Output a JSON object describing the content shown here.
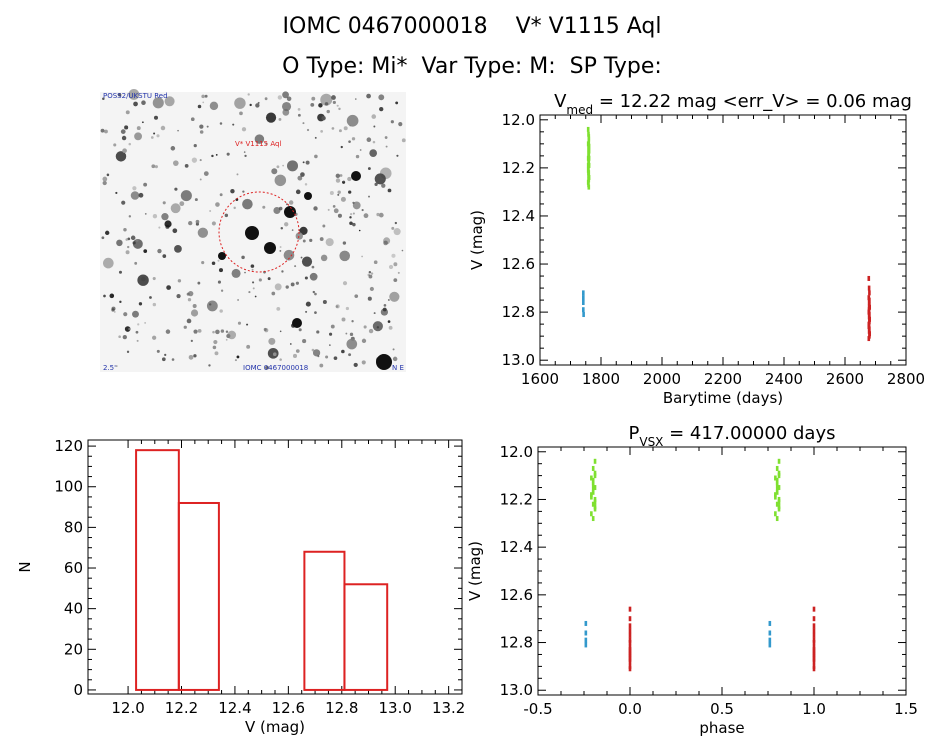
{
  "header": {
    "line1": "IOMC 0467000018    V* V1115 Aql",
    "line2": "O Type: Mi*  Var Type: M:  SP Type:"
  },
  "sky_image": {
    "overlay_top_left": "POSS2/UKSTU Red",
    "overlay_label": "V* V1115 Aql",
    "overlay_bottom_left": "2.5'",
    "overlay_bottom_center": "IOMC 0467000018",
    "overlay_bottom_right": "N E",
    "circle_color": "#dd2222"
  },
  "chart_data": [
    {
      "id": "lightcurve",
      "type": "scatter",
      "title_main": "V",
      "title_sub": "med",
      "title_rest": " = 12.22 mag <err_V> = 0.06 mag",
      "xlabel": "Barytime (days)",
      "ylabel": "V (mag)",
      "xlim": [
        1600,
        2800
      ],
      "ylim": [
        13.02,
        11.98
      ],
      "xticks": [
        1600,
        1800,
        2000,
        2200,
        2400,
        2600,
        2800
      ],
      "yticks": [
        12.0,
        12.2,
        12.4,
        12.6,
        12.8,
        13.0
      ],
      "tick_decimals": 0,
      "ytick_decimals": 1,
      "series": [
        {
          "color": "#7fe030",
          "x": [
            1758,
            1759,
            1760,
            1758,
            1759,
            1761,
            1760,
            1758,
            1759,
            1760,
            1761,
            1759,
            1758,
            1760,
            1759,
            1761,
            1760,
            1758,
            1759,
            1760,
            1761,
            1759,
            1760,
            1758,
            1759,
            1760,
            1761,
            1759
          ],
          "y": [
            12.04,
            12.06,
            12.08,
            12.1,
            12.12,
            12.13,
            12.15,
            12.16,
            12.17,
            12.18,
            12.19,
            12.2,
            12.21,
            12.22,
            12.23,
            12.24,
            12.25,
            12.26,
            12.27,
            12.28,
            12.11,
            12.14,
            12.09,
            12.19,
            12.22,
            12.07,
            12.16,
            12.25
          ]
        },
        {
          "color": "#3399cc",
          "x": [
            1742,
            1742,
            1742,
            1743,
            1742
          ],
          "y": [
            12.72,
            12.76,
            12.79,
            12.81,
            12.74
          ]
        },
        {
          "color": "#cc2222",
          "x": [
            2678,
            2679,
            2680,
            2678,
            2679,
            2680,
            2681,
            2679,
            2678,
            2680,
            2679,
            2681,
            2680,
            2678,
            2679,
            2680,
            2679,
            2681,
            2678,
            2680,
            2679,
            2680,
            2678,
            2679,
            2680
          ],
          "y": [
            12.66,
            12.7,
            12.72,
            12.74,
            12.76,
            12.77,
            12.78,
            12.79,
            12.8,
            12.81,
            12.82,
            12.83,
            12.84,
            12.85,
            12.86,
            12.87,
            12.88,
            12.89,
            12.91,
            12.75,
            12.8,
            12.83,
            12.86,
            12.78,
            12.9
          ]
        }
      ]
    },
    {
      "id": "histogram",
      "type": "bar",
      "xlabel": "V (mag)",
      "ylabel": "N",
      "xlim": [
        11.85,
        13.25
      ],
      "ylim": [
        -2,
        123
      ],
      "xticks": [
        12.0,
        12.2,
        12.4,
        12.6,
        12.8,
        13.0,
        13.2
      ],
      "yticks": [
        0,
        20,
        40,
        60,
        80,
        100,
        120
      ],
      "ytick_decimals": 0,
      "tick_decimals": 1,
      "color": "#dd2222",
      "bins": [
        {
          "x0": 12.03,
          "x1": 12.19,
          "value": 118
        },
        {
          "x0": 12.19,
          "x1": 12.34,
          "value": 92
        },
        {
          "x0": 12.66,
          "x1": 12.81,
          "value": 68
        },
        {
          "x0": 12.81,
          "x1": 12.97,
          "value": 52
        }
      ]
    },
    {
      "id": "phased",
      "type": "scatter",
      "title_main": "P",
      "title_sub": "VSX",
      "title_rest": " = 417.00000 days",
      "xlabel": "phase",
      "ylabel": "V (mag)",
      "xlim": [
        -0.5,
        1.5
      ],
      "ylim": [
        13.02,
        11.98
      ],
      "xticks": [
        -0.5,
        0.0,
        0.5,
        1.0,
        1.5
      ],
      "yticks": [
        12.0,
        12.2,
        12.4,
        12.6,
        12.8,
        13.0
      ],
      "tick_decimals": 1,
      "ytick_decimals": 1,
      "series": [
        {
          "color": "#7fe030",
          "x": [
            -0.19,
            -0.2,
            -0.19,
            -0.21,
            -0.2,
            -0.19,
            -0.2,
            -0.21,
            -0.19,
            -0.2,
            -0.19,
            -0.21,
            -0.2,
            -0.19,
            -0.2,
            -0.21,
            -0.19,
            -0.2,
            -0.19,
            -0.2,
            0.81,
            0.8,
            0.81,
            0.79,
            0.8,
            0.81,
            0.8,
            0.79,
            0.81,
            0.8,
            0.81,
            0.79,
            0.8,
            0.81,
            0.8,
            0.79,
            0.81,
            0.8,
            0.81,
            0.8
          ],
          "y": [
            12.04,
            12.07,
            12.09,
            12.11,
            12.13,
            12.15,
            12.17,
            12.19,
            12.2,
            12.22,
            12.24,
            12.26,
            12.28,
            12.1,
            12.14,
            12.18,
            12.21,
            12.16,
            12.23,
            12.12,
            12.04,
            12.07,
            12.09,
            12.11,
            12.13,
            12.15,
            12.17,
            12.19,
            12.2,
            12.22,
            12.24,
            12.26,
            12.28,
            12.1,
            12.14,
            12.18,
            12.21,
            12.16,
            12.23,
            12.12
          ]
        },
        {
          "color": "#3399cc",
          "x": [
            -0.24,
            -0.24,
            -0.24,
            -0.24,
            0.76,
            0.76,
            0.76,
            0.76
          ],
          "y": [
            12.72,
            12.76,
            12.79,
            12.81,
            12.72,
            12.76,
            12.79,
            12.81
          ]
        },
        {
          "color": "#cc2222",
          "x": [
            0.0,
            0.0,
            0.0,
            0.0,
            0.0,
            0.0,
            0.0,
            0.0,
            0.0,
            0.0,
            0.0,
            0.0,
            0.0,
            0.0,
            0.0,
            0.0,
            1.0,
            1.0,
            1.0,
            1.0,
            1.0,
            1.0,
            1.0,
            1.0,
            1.0,
            1.0,
            1.0,
            1.0,
            1.0,
            1.0,
            1.0,
            1.0
          ],
          "y": [
            12.66,
            12.7,
            12.73,
            12.75,
            12.77,
            12.79,
            12.8,
            12.82,
            12.83,
            12.84,
            12.85,
            12.86,
            12.87,
            12.88,
            12.9,
            12.91,
            12.66,
            12.7,
            12.73,
            12.75,
            12.77,
            12.79,
            12.8,
            12.82,
            12.83,
            12.84,
            12.85,
            12.86,
            12.87,
            12.88,
            12.9,
            12.91
          ]
        }
      ]
    }
  ]
}
